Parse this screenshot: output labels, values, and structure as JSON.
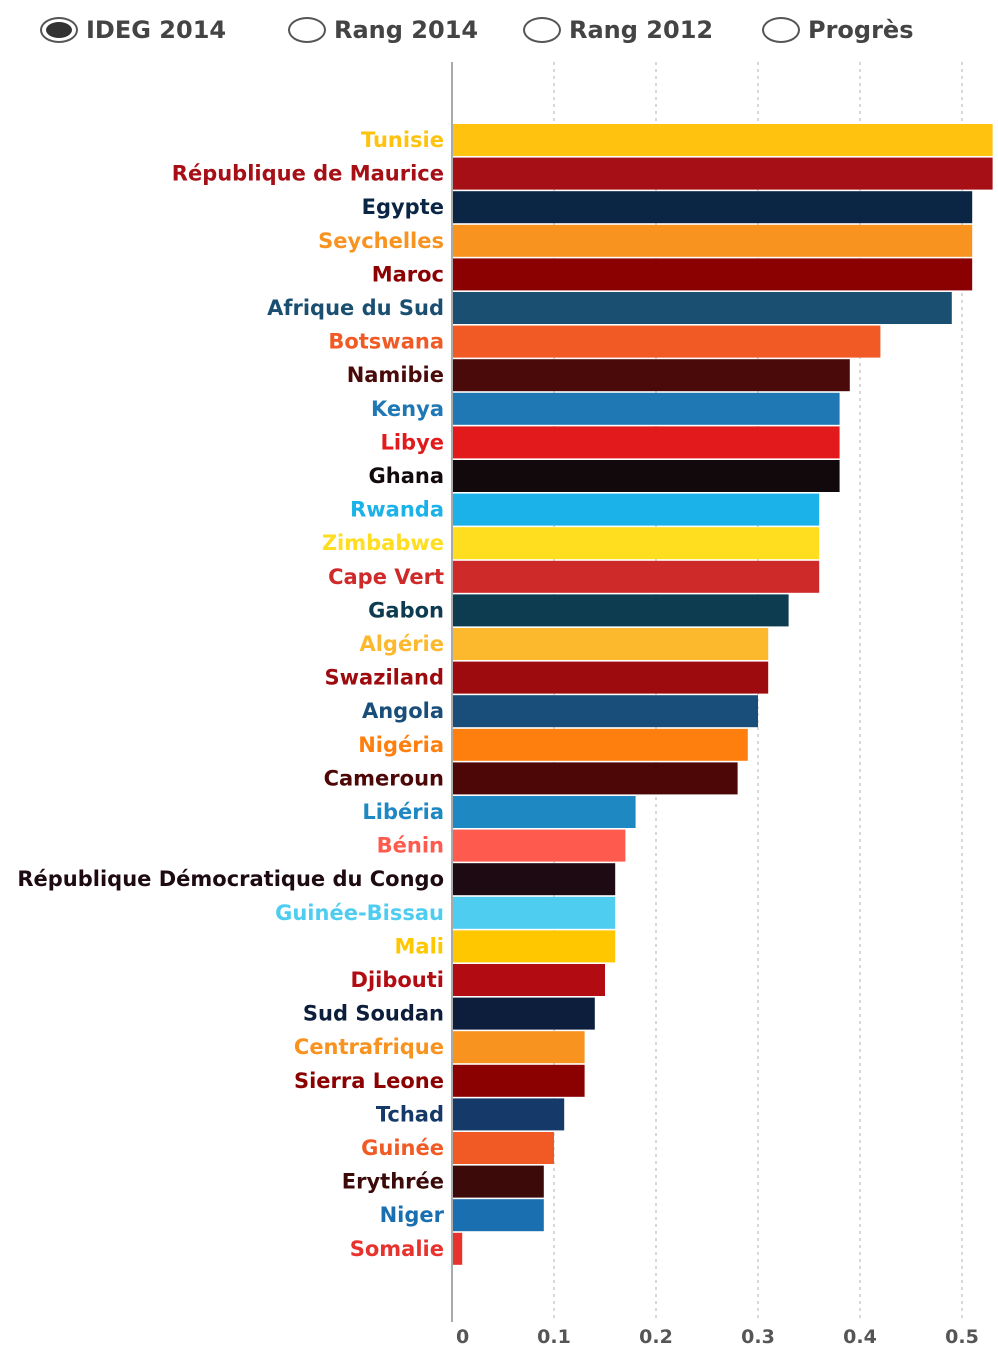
{
  "controls": {
    "options": [
      {
        "label": "IDEG 2014",
        "selected": true
      },
      {
        "label": "Rang 2014",
        "selected": false
      },
      {
        "label": "Rang 2012",
        "selected": false
      },
      {
        "label": "Progrès",
        "selected": false
      }
    ]
  },
  "chart_data": {
    "type": "bar",
    "orientation": "horizontal",
    "title": "",
    "xlabel": "",
    "ylabel": "",
    "xlim": [
      0,
      0.53
    ],
    "xticks": [
      0,
      0.1,
      0.2,
      0.3,
      0.4,
      0.5
    ],
    "xtick_labels": [
      "0",
      "0.1",
      "0.2",
      "0.3",
      "0.4",
      "0.5"
    ],
    "grid": "vertical dashed",
    "categories": [
      "Tunisie",
      "République de Maurice",
      "Egypte",
      "Seychelles",
      "Maroc",
      "Afrique du Sud",
      "Botswana",
      "Namibie",
      "Kenya",
      "Libye",
      "Ghana",
      "Rwanda",
      "Zimbabwe",
      "Cape Vert",
      "Gabon",
      "Algérie",
      "Swaziland",
      "Angola",
      "Nigéria",
      "Cameroun",
      "Libéria",
      "Bénin",
      "République Démocratique du Congo",
      "Guinée-Bissau",
      "Mali",
      "Djibouti",
      "Sud Soudan",
      "Centrafrique",
      "Sierra Leone",
      "Tchad",
      "Guinée",
      "Erythrée",
      "Niger",
      "Somalie"
    ],
    "values": [
      0.53,
      0.53,
      0.51,
      0.51,
      0.51,
      0.49,
      0.42,
      0.39,
      0.38,
      0.38,
      0.38,
      0.36,
      0.36,
      0.36,
      0.33,
      0.31,
      0.31,
      0.3,
      0.29,
      0.28,
      0.18,
      0.17,
      0.16,
      0.16,
      0.16,
      0.15,
      0.14,
      0.13,
      0.13,
      0.11,
      0.1,
      0.09,
      0.09,
      0.01
    ],
    "colors": [
      "#FFC20E",
      "#A50F15",
      "#0B2545",
      "#F7931E",
      "#8B0000",
      "#1B4F72",
      "#F15A24",
      "#4A0A0A",
      "#1F77B4",
      "#E31A1C",
      "#12090C",
      "#1AB2E8",
      "#FFDD1F",
      "#CF2A2A",
      "#0D3B4F",
      "#FDB92E",
      "#9E0B0F",
      "#1A4E7A",
      "#FF7F0E",
      "#4D0707",
      "#1E88C3",
      "#FF5A4E",
      "#1E0A12",
      "#4FCDF0",
      "#FFC700",
      "#B30B12",
      "#0C1E3C",
      "#F7931E",
      "#8B0000",
      "#153A6A",
      "#F15A24",
      "#3D0A0A",
      "#1A6FB0",
      "#E8322D"
    ]
  }
}
